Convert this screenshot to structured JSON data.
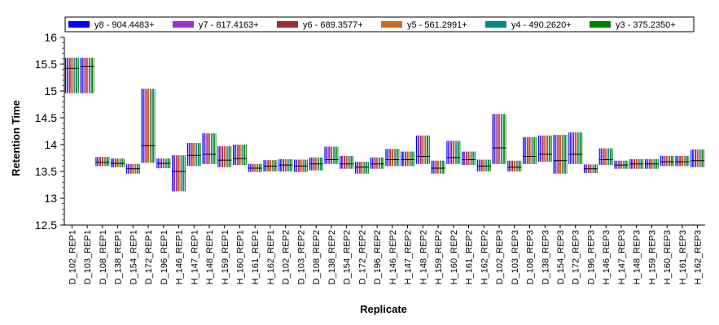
{
  "chart_data": {
    "type": "bar",
    "xlabel": "Replicate",
    "ylabel": "Retention Time",
    "ylim": [
      12.5,
      16
    ],
    "yticks": [
      "12.5",
      "13",
      "13.5",
      "14",
      "14.5",
      "15",
      "15.5",
      "16"
    ],
    "legend_position": "top",
    "series": [
      {
        "name": "y8 - 904.4483+",
        "color": "#0000ff"
      },
      {
        "name": "y7 - 817.4163+",
        "color": "#9932cc"
      },
      {
        "name": "y6 - 689.3577+",
        "color": "#a52a2a"
      },
      {
        "name": "y5 - 561.2991+",
        "color": "#d2691e"
      },
      {
        "name": "y4 - 490.2620+",
        "color": "#008b8b"
      },
      {
        "name": "y3 - 375.2350+",
        "color": "#008000"
      }
    ],
    "categories": [
      "D_102_REP1",
      "D_103_REP1",
      "D_108_REP1",
      "D_138_REP1",
      "D_154_REP1",
      "D_172_REP1",
      "D_196_REP1",
      "H_146_REP1",
      "H_147_REP1",
      "H_148_REP1",
      "H_159_REP1",
      "H_160_REP1",
      "H_161_REP1",
      "H_162_REP1",
      "D_102_REP2",
      "D_103_REP2",
      "D_108_REP2",
      "D_138_REP2",
      "D_154_REP2",
      "D_172_REP2",
      "D_196_REP2",
      "H_146_REP2",
      "H_147_REP2",
      "H_148_REP2",
      "H_159_REP2",
      "H_160_REP2",
      "H_161_REP2",
      "H_162_REP2",
      "D_102_REP3",
      "D_103_REP3",
      "D_108_REP3",
      "D_138_REP3",
      "D_154_REP3",
      "D_172_REP3",
      "D_196_REP3",
      "H_146_REP3",
      "H_147_REP3",
      "H_148_REP3",
      "H_159_REP3",
      "H_160_REP3",
      "H_161_REP3",
      "H_162_REP3"
    ],
    "ranges": [
      {
        "low": 14.96,
        "high": 15.62,
        "mid": 15.42
      },
      {
        "low": 14.96,
        "high": 15.62,
        "mid": 15.46
      },
      {
        "low": 13.6,
        "high": 13.77,
        "mid": 13.67
      },
      {
        "low": 13.58,
        "high": 13.74,
        "mid": 13.65
      },
      {
        "low": 13.46,
        "high": 13.64,
        "mid": 13.55
      },
      {
        "low": 13.66,
        "high": 15.04,
        "mid": 13.98
      },
      {
        "low": 13.56,
        "high": 13.74,
        "mid": 13.65
      },
      {
        "low": 13.13,
        "high": 13.8,
        "mid": 13.5
      },
      {
        "low": 13.6,
        "high": 14.03,
        "mid": 13.8
      },
      {
        "low": 13.64,
        "high": 14.21,
        "mid": 13.82
      },
      {
        "low": 13.58,
        "high": 13.97,
        "mid": 13.71
      },
      {
        "low": 13.62,
        "high": 14.0,
        "mid": 13.74
      },
      {
        "low": 13.49,
        "high": 13.64,
        "mid": 13.56
      },
      {
        "low": 13.5,
        "high": 13.71,
        "mid": 13.6
      },
      {
        "low": 13.5,
        "high": 13.73,
        "mid": 13.62
      },
      {
        "low": 13.49,
        "high": 13.72,
        "mid": 13.6
      },
      {
        "low": 13.52,
        "high": 13.76,
        "mid": 13.64
      },
      {
        "low": 13.64,
        "high": 13.96,
        "mid": 13.72
      },
      {
        "low": 13.55,
        "high": 13.79,
        "mid": 13.64
      },
      {
        "low": 13.46,
        "high": 13.68,
        "mid": 13.58
      },
      {
        "low": 13.55,
        "high": 13.76,
        "mid": 13.64
      },
      {
        "low": 13.6,
        "high": 13.92,
        "mid": 13.72
      },
      {
        "low": 13.6,
        "high": 13.87,
        "mid": 13.72
      },
      {
        "low": 13.64,
        "high": 14.17,
        "mid": 13.78
      },
      {
        "low": 13.46,
        "high": 13.7,
        "mid": 13.56
      },
      {
        "low": 13.64,
        "high": 14.07,
        "mid": 13.76
      },
      {
        "low": 13.62,
        "high": 13.87,
        "mid": 13.72
      },
      {
        "low": 13.5,
        "high": 13.72,
        "mid": 13.6
      },
      {
        "low": 13.64,
        "high": 14.57,
        "mid": 13.94
      },
      {
        "low": 13.5,
        "high": 13.7,
        "mid": 13.58
      },
      {
        "low": 13.64,
        "high": 14.14,
        "mid": 13.78
      },
      {
        "low": 13.68,
        "high": 14.17,
        "mid": 13.82
      },
      {
        "low": 13.46,
        "high": 14.18,
        "mid": 13.7
      },
      {
        "low": 13.64,
        "high": 14.23,
        "mid": 13.82
      },
      {
        "low": 13.47,
        "high": 13.63,
        "mid": 13.55
      },
      {
        "low": 13.62,
        "high": 13.93,
        "mid": 13.72
      },
      {
        "low": 13.55,
        "high": 13.7,
        "mid": 13.62
      },
      {
        "low": 13.55,
        "high": 13.73,
        "mid": 13.64
      },
      {
        "low": 13.55,
        "high": 13.73,
        "mid": 13.64
      },
      {
        "low": 13.6,
        "high": 13.79,
        "mid": 13.68
      },
      {
        "low": 13.6,
        "high": 13.79,
        "mid": 13.68
      },
      {
        "low": 13.58,
        "high": 13.91,
        "mid": 13.7
      }
    ]
  }
}
